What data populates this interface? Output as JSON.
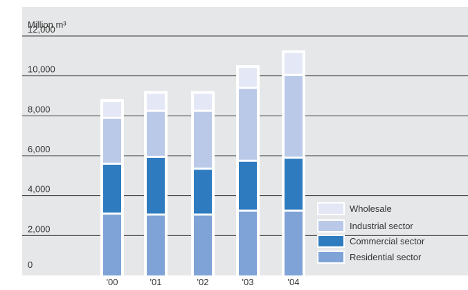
{
  "chart_data": {
    "type": "bar",
    "stacked": true,
    "title": "",
    "ylabel": "Million m³",
    "ylim": [
      0,
      12000
    ],
    "yticks": [
      "0",
      "2,000",
      "4,000",
      "6,000",
      "8,000",
      "10,000",
      "12,000"
    ],
    "categories": [
      "'00",
      "'01",
      "'02",
      "'03",
      "'04"
    ],
    "series": [
      {
        "name": "Residential sector",
        "color": "#7fa3d6",
        "values": [
          3100,
          3050,
          3050,
          3250,
          3250
        ]
      },
      {
        "name": "Commercial sector",
        "color": "#2e7bbf",
        "values": [
          2500,
          2900,
          2300,
          2500,
          2650
        ]
      },
      {
        "name": "Industrial sector",
        "color": "#bac9e8",
        "values": [
          2300,
          2300,
          2900,
          3650,
          4150
        ]
      },
      {
        "name": "Wholesale",
        "color": "#e4e8f6",
        "values": [
          800,
          850,
          850,
          1000,
          1100
        ]
      }
    ],
    "legend": {
      "placement": "bottom-right",
      "order": [
        "Wholesale",
        "Industrial sector",
        "Commercial sector",
        "Residential sector"
      ]
    },
    "grid": true
  }
}
